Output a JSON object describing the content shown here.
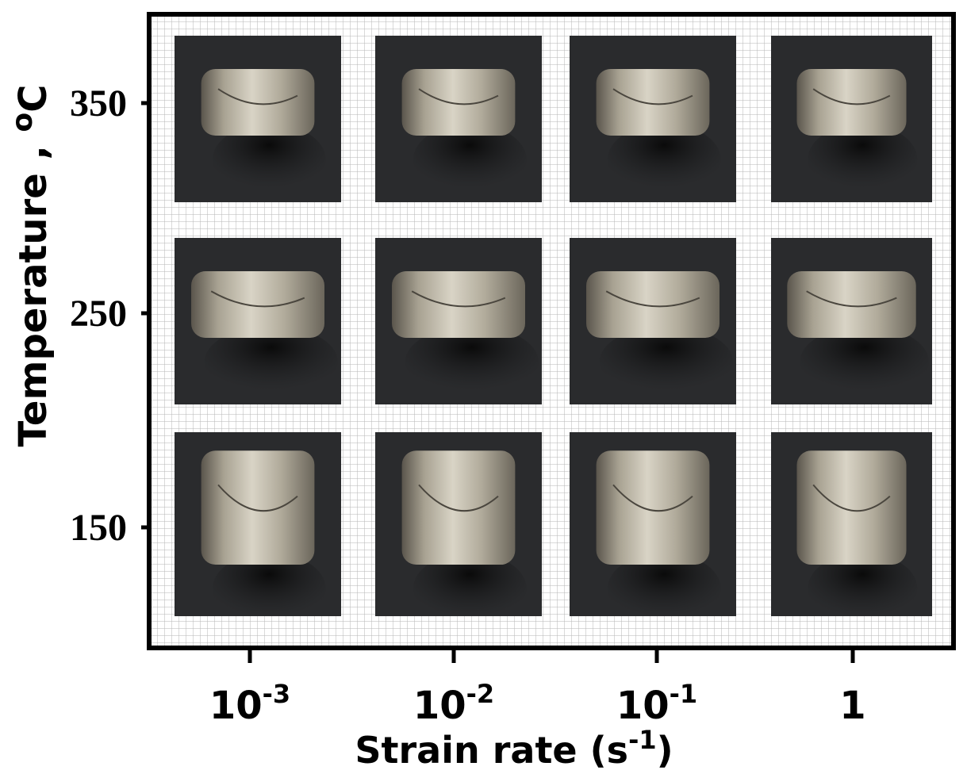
{
  "y_axis": {
    "title": "Temperature , ",
    "title_sup": "o",
    "title_unit": "C",
    "ticks": [
      "350",
      "250",
      "150"
    ]
  },
  "x_axis": {
    "ticks": [
      {
        "base": "10",
        "exp": "-3"
      },
      {
        "base": "10",
        "exp": "-2"
      },
      {
        "base": "10",
        "exp": "-1"
      },
      {
        "base": "1"
      }
    ],
    "title": "Strain rate (s",
    "title_sup": "-1",
    "title_end": ")"
  }
}
